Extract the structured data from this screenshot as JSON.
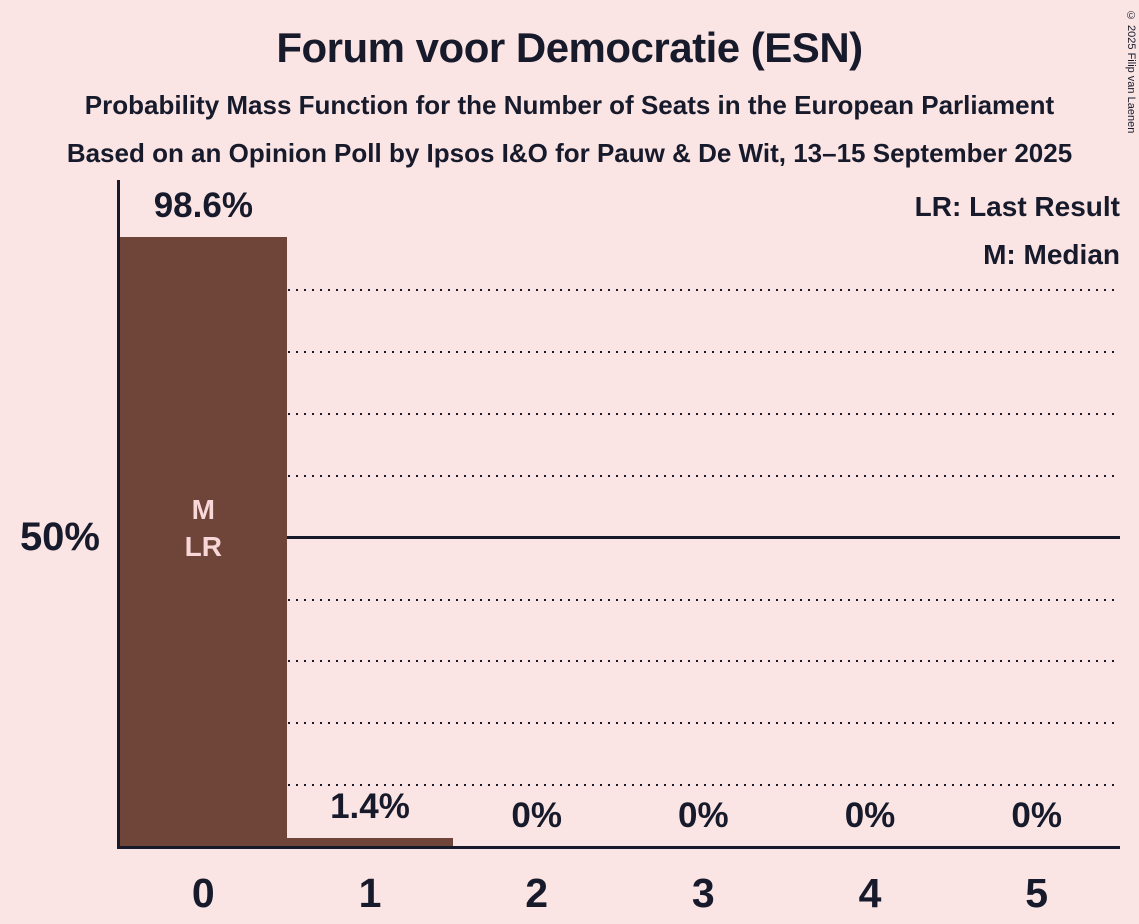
{
  "header": {
    "title": "Forum voor Democratie (ESN)",
    "subtitle1": "Probability Mass Function for the Number of Seats in the European Parliament",
    "subtitle2": "Based on an Opinion Poll by Ipsos I&O for Pauw & De Wit, 13–15 September 2025"
  },
  "legend": {
    "last_result": "LR: Last Result",
    "median": "M: Median"
  },
  "copyright": "© 2025 Filip van Laenen",
  "y_axis": {
    "tick_label": "50%"
  },
  "colors": {
    "background": "#fae4e4",
    "bar": "#6f4539",
    "bar_label": "#f7d7d7",
    "text": "#171a2b"
  },
  "chart_data": {
    "type": "bar",
    "title": "Forum voor Democratie (ESN)",
    "categories": [
      "0",
      "1",
      "2",
      "3",
      "4",
      "5"
    ],
    "values": [
      98.6,
      1.4,
      0,
      0,
      0,
      0
    ],
    "value_labels": [
      "98.6%",
      "1.4%",
      "0%",
      "0%",
      "0%",
      "0%"
    ],
    "xlabel": "",
    "ylabel": "",
    "ylim": [
      0,
      100
    ],
    "y_tick_labeled_pct": 50,
    "y_gridlines_pct": [
      10,
      20,
      30,
      40,
      60,
      70,
      80,
      90
    ],
    "y_solid_line_pct": 50,
    "grid_style": "dotted",
    "legend_position": "top-right",
    "annotations": [
      {
        "category": "0",
        "lines": [
          "M",
          "LR"
        ]
      }
    ]
  }
}
